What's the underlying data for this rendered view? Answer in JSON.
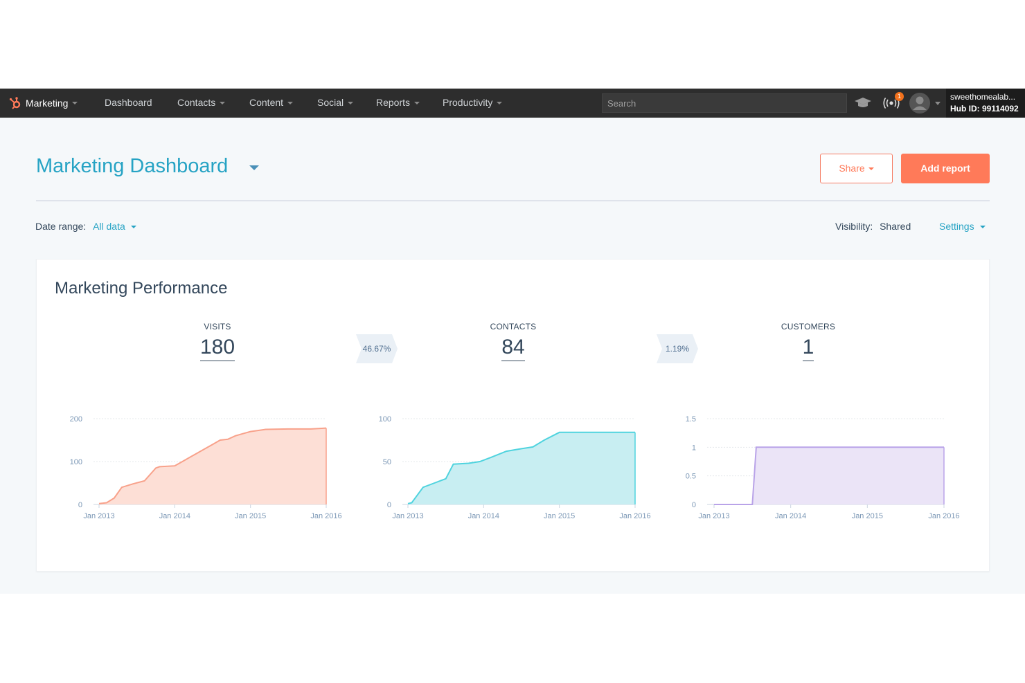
{
  "nav": {
    "brand": "Marketing",
    "items": [
      "Dashboard",
      "Contacts",
      "Content",
      "Social",
      "Reports",
      "Productivity"
    ],
    "search_placeholder": "Search",
    "notifications_count": "1",
    "account_name": "sweethomealab...",
    "hub_id": "Hub ID: 99114092"
  },
  "header": {
    "title": "Marketing Dashboard",
    "share_label": "Share",
    "add_report_label": "Add report"
  },
  "filters": {
    "date_range_label": "Date range:",
    "date_range_value": "All data",
    "visibility_label": "Visibility:",
    "visibility_value": "Shared",
    "settings_label": "Settings"
  },
  "card": {
    "title": "Marketing Performance",
    "metrics": [
      {
        "label": "VISITS",
        "value": "180"
      },
      {
        "label": "CONTACTS",
        "value": "84"
      },
      {
        "label": "CUSTOMERS",
        "value": "1"
      }
    ],
    "rates": [
      "46.67%",
      "1.19%"
    ]
  },
  "chart_data": [
    {
      "type": "area",
      "title": "",
      "color": "#f8a18a",
      "fill": "#fddfd6",
      "x_ticks": [
        "Jan 2013",
        "Jan 2014",
        "Jan 2015",
        "Jan 2016"
      ],
      "y_ticks": [
        "0",
        "100",
        "200"
      ],
      "ylim": [
        0,
        200
      ],
      "grid": true,
      "x": [
        2013.0,
        2013.1,
        2013.2,
        2013.3,
        2013.45,
        2013.6,
        2013.75,
        2013.8,
        2014.0,
        2014.1,
        2014.2,
        2014.3,
        2014.4,
        2014.5,
        2014.6,
        2014.7,
        2014.8,
        2014.9,
        2015.0,
        2015.2,
        2015.5,
        2015.8,
        2016.0
      ],
      "y": [
        2,
        4,
        15,
        40,
        48,
        55,
        85,
        88,
        90,
        100,
        110,
        120,
        130,
        140,
        150,
        152,
        160,
        165,
        170,
        175,
        176,
        176,
        178
      ]
    },
    {
      "type": "area",
      "title": "",
      "color": "#4fd3de",
      "fill": "#c8eef2",
      "x_ticks": [
        "Jan 2013",
        "Jan 2014",
        "Jan 2015",
        "Jan 2016"
      ],
      "y_ticks": [
        "0",
        "50",
        "100"
      ],
      "ylim": [
        0,
        100
      ],
      "grid": true,
      "x": [
        2013.0,
        2013.05,
        2013.2,
        2013.35,
        2013.5,
        2013.6,
        2013.8,
        2013.95,
        2014.1,
        2014.3,
        2014.5,
        2014.65,
        2014.8,
        2015.0,
        2015.5,
        2016.0
      ],
      "y": [
        1,
        2,
        20,
        25,
        30,
        47,
        48,
        50,
        55,
        62,
        65,
        67,
        75,
        84,
        84,
        84
      ]
    },
    {
      "type": "area",
      "title": "",
      "color": "#b9a3e8",
      "fill": "#ebe4f7",
      "x_ticks": [
        "Jan 2013",
        "Jan 2014",
        "Jan 2015",
        "Jan 2016"
      ],
      "y_ticks": [
        "0",
        "0.5",
        "1",
        "1.5"
      ],
      "ylim": [
        0,
        1.5
      ],
      "grid": true,
      "x": [
        2013.0,
        2013.5,
        2013.55,
        2014.0,
        2015.0,
        2016.0
      ],
      "y": [
        0,
        0,
        1,
        1,
        1,
        1
      ]
    }
  ]
}
